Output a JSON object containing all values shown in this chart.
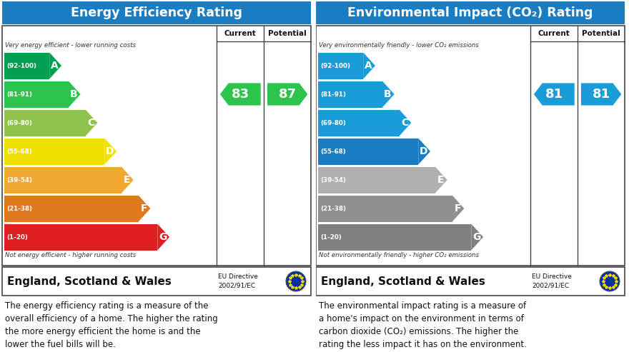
{
  "left_title": "Energy Efficiency Rating",
  "right_title": "Environmental Impact (CO₂) Rating",
  "header_bg": "#1a7dc4",
  "bands": [
    "A",
    "B",
    "C",
    "D",
    "E",
    "F",
    "G"
  ],
  "band_ranges": [
    "(92-100)",
    "(81-91)",
    "(69-80)",
    "(55-68)",
    "(39-54)",
    "(21-38)",
    "(1-20)"
  ],
  "epc_colors": [
    "#00a050",
    "#2dc44e",
    "#8dc34a",
    "#f0e000",
    "#f0a830",
    "#e07820",
    "#e02020"
  ],
  "eco_colors": [
    "#1a9cd8",
    "#1a9cd8",
    "#1a9cd8",
    "#1a7dc4",
    "#b0b0b0",
    "#909090",
    "#808080"
  ],
  "bar_props": [
    0.27,
    0.36,
    0.44,
    0.53,
    0.61,
    0.69,
    0.78
  ],
  "current_epc": 83,
  "potential_epc": 87,
  "current_eco": 81,
  "potential_eco": 81,
  "current_color_epc": "#2dc44e",
  "potential_color_epc": "#2dc44e",
  "current_color_eco": "#1a9cd8",
  "potential_color_eco": "#1a9cd8",
  "current_band_epc": 1,
  "potential_band_epc": 1,
  "current_band_eco": 1,
  "potential_band_eco": 1,
  "top_note_epc": "Very energy efficient - lower running costs",
  "bottom_note_epc": "Not energy efficient - higher running costs",
  "top_note_eco": "Very environmentally friendly - lower CO₂ emissions",
  "bottom_note_eco": "Not environmentally friendly - higher CO₂ emissions",
  "footer_country": "England, Scotland & Wales",
  "footer_directive": "EU Directive\n2002/91/EC",
  "desc_epc": "The energy efficiency rating is a measure of the\noverall efficiency of a home. The higher the rating\nthe more energy efficient the home is and the\nlower the fuel bills will be.",
  "desc_eco": "The environmental impact rating is a measure of\na home's impact on the environment in terms of\ncarbon dioxide (CO₂) emissions. The higher the\nrating the less impact it has on the environment."
}
